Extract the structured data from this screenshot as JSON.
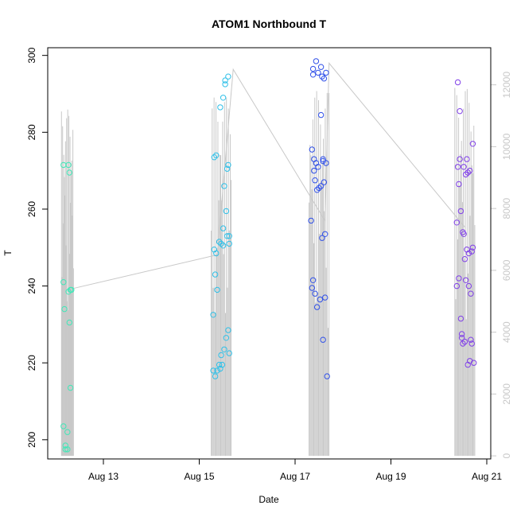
{
  "chart_data": {
    "type": "scatter",
    "title": "ATOM1 Northbound T",
    "xlabel": "Date",
    "ylabel": "T",
    "x_ticks": [
      "Aug 13",
      "Aug 15",
      "Aug 17",
      "Aug 19",
      "Aug 21"
    ],
    "ylim": [
      195,
      302
    ],
    "y_ticks": [
      200,
      220,
      240,
      260,
      280,
      300
    ],
    "y2lim": [
      -100,
      13200
    ],
    "y2_ticks": [
      0,
      2000,
      4000,
      6000,
      8000,
      10000,
      12000
    ],
    "grid": false,
    "colors": {
      "aug12": "#40e8b8",
      "aug15": "#30c0e8",
      "aug17": "#3050e8",
      "aug20": "#8040e8",
      "secondary": "#c8c8c8"
    },
    "series": [
      {
        "color": "#40e8b8",
        "points": [
          [
            "2012-08-12T04:00",
            271.5
          ],
          [
            "2012-08-12T04:00",
            241
          ],
          [
            "2012-08-12T04:00",
            203.5
          ],
          [
            "2012-08-12T04:30",
            234
          ],
          [
            "2012-08-12T05:00",
            198.5
          ],
          [
            "2012-08-12T05:00",
            197.5
          ],
          [
            "2012-08-12T06:00",
            202
          ],
          [
            "2012-08-12T06:00",
            197.5
          ],
          [
            "2012-08-12T06:30",
            271.5
          ],
          [
            "2012-08-12T06:30",
            238.5
          ],
          [
            "2012-08-12T07:00",
            230.5
          ],
          [
            "2012-08-12T07:00",
            269.5
          ],
          [
            "2012-08-12T07:30",
            239
          ],
          [
            "2012-08-12T07:30",
            213.5
          ],
          [
            "2012-08-12T08:00",
            239
          ]
        ]
      },
      {
        "color": "#30c0e8",
        "points": [
          [
            "2012-08-15T07:00",
            232.5
          ],
          [
            "2012-08-15T07:00",
            218
          ],
          [
            "2012-08-15T07:30",
            249.5
          ],
          [
            "2012-08-15T07:30",
            273.5
          ],
          [
            "2012-08-15T08:00",
            243
          ],
          [
            "2012-08-15T08:00",
            216.5
          ],
          [
            "2012-08-15T08:30",
            274
          ],
          [
            "2012-08-15T08:30",
            248.5
          ],
          [
            "2012-08-15T09:00",
            239
          ],
          [
            "2012-08-15T09:00",
            218
          ],
          [
            "2012-08-15T10:00",
            219.5
          ],
          [
            "2012-08-15T10:00",
            251.5
          ],
          [
            "2012-08-15T10:30",
            286.5
          ],
          [
            "2012-08-15T10:30",
            218.5
          ],
          [
            "2012-08-15T11:00",
            251
          ],
          [
            "2012-08-15T11:00",
            222
          ],
          [
            "2012-08-15T11:30",
            219.5
          ],
          [
            "2012-08-15T12:00",
            250.5
          ],
          [
            "2012-08-15T12:00",
            289
          ],
          [
            "2012-08-15T12:00",
            255
          ],
          [
            "2012-08-15T12:30",
            223.5
          ],
          [
            "2012-08-15T12:30",
            266
          ],
          [
            "2012-08-15T13:00",
            293.5
          ],
          [
            "2012-08-15T13:00",
            292.5
          ],
          [
            "2012-08-15T13:30",
            259.5
          ],
          [
            "2012-08-15T13:30",
            226.5
          ],
          [
            "2012-08-15T14:00",
            253
          ],
          [
            "2012-08-15T14:00",
            270.5
          ],
          [
            "2012-08-15T14:30",
            294.5
          ],
          [
            "2012-08-15T14:30",
            271.5
          ],
          [
            "2012-08-15T14:30",
            228.5
          ],
          [
            "2012-08-15T15:00",
            253
          ],
          [
            "2012-08-15T15:00",
            251
          ],
          [
            "2012-08-15T15:00",
            222.5
          ]
        ]
      },
      {
        "color": "#3050e8",
        "points": [
          [
            "2012-08-17T08:00",
            257
          ],
          [
            "2012-08-17T08:30",
            239.5
          ],
          [
            "2012-08-17T08:30",
            275.5
          ],
          [
            "2012-08-17T09:00",
            296.5
          ],
          [
            "2012-08-17T09:00",
            295
          ],
          [
            "2012-08-17T09:00",
            241.5
          ],
          [
            "2012-08-17T09:30",
            270
          ],
          [
            "2012-08-17T09:30",
            273
          ],
          [
            "2012-08-17T10:00",
            267.5
          ],
          [
            "2012-08-17T10:00",
            238
          ],
          [
            "2012-08-17T10:30",
            298.5
          ],
          [
            "2012-08-17T10:30",
            272
          ],
          [
            "2012-08-17T11:00",
            265
          ],
          [
            "2012-08-17T11:00",
            234.5
          ],
          [
            "2012-08-17T11:30",
            295.5
          ],
          [
            "2012-08-17T11:30",
            271
          ],
          [
            "2012-08-17T12:00",
            265.5
          ],
          [
            "2012-08-17T12:30",
            236.5
          ],
          [
            "2012-08-17T13:00",
            297
          ],
          [
            "2012-08-17T13:00",
            284.5
          ],
          [
            "2012-08-17T13:00",
            266
          ],
          [
            "2012-08-17T13:30",
            294.5
          ],
          [
            "2012-08-17T13:30",
            252.5
          ],
          [
            "2012-08-17T14:00",
            273
          ],
          [
            "2012-08-17T14:00",
            272.5
          ],
          [
            "2012-08-17T14:00",
            226
          ],
          [
            "2012-08-17T14:30",
            294
          ],
          [
            "2012-08-17T14:30",
            267
          ],
          [
            "2012-08-17T15:00",
            237
          ],
          [
            "2012-08-17T15:00",
            253.5
          ],
          [
            "2012-08-17T15:30",
            295.5
          ],
          [
            "2012-08-17T15:30",
            272
          ],
          [
            "2012-08-17T16:00",
            216.5
          ]
        ]
      },
      {
        "color": "#8040e8",
        "points": [
          [
            "2012-08-20T09:00",
            256.5
          ],
          [
            "2012-08-20T09:00",
            240
          ],
          [
            "2012-08-20T09:30",
            293
          ],
          [
            "2012-08-20T09:30",
            271
          ],
          [
            "2012-08-20T10:00",
            266.5
          ],
          [
            "2012-08-20T10:00",
            242
          ],
          [
            "2012-08-20T10:30",
            285.5
          ],
          [
            "2012-08-20T10:30",
            273
          ],
          [
            "2012-08-20T11:00",
            259.5
          ],
          [
            "2012-08-20T11:00",
            231.5
          ],
          [
            "2012-08-20T11:30",
            227.5
          ],
          [
            "2012-08-20T11:30",
            226.5
          ],
          [
            "2012-08-20T12:00",
            225
          ],
          [
            "2012-08-20T12:00",
            254
          ],
          [
            "2012-08-20T12:30",
            271
          ],
          [
            "2012-08-20T12:30",
            253.5
          ],
          [
            "2012-08-20T13:00",
            247
          ],
          [
            "2012-08-20T13:00",
            225.5
          ],
          [
            "2012-08-20T13:30",
            241.5
          ],
          [
            "2012-08-20T13:30",
            269
          ],
          [
            "2012-08-20T14:00",
            273
          ],
          [
            "2012-08-20T14:00",
            249.5
          ],
          [
            "2012-08-20T14:30",
            219.5
          ],
          [
            "2012-08-20T14:30",
            269.5
          ],
          [
            "2012-08-20T15:00",
            248.5
          ],
          [
            "2012-08-20T15:00",
            240
          ],
          [
            "2012-08-20T15:30",
            270
          ],
          [
            "2012-08-20T15:30",
            220.5
          ],
          [
            "2012-08-20T16:00",
            238
          ],
          [
            "2012-08-20T16:00",
            226
          ],
          [
            "2012-08-20T16:30",
            225
          ],
          [
            "2012-08-20T16:30",
            249
          ],
          [
            "2012-08-20T17:00",
            277
          ],
          [
            "2012-08-20T17:00",
            250
          ],
          [
            "2012-08-20T17:30",
            220
          ]
        ]
      }
    ],
    "secondary_series": {
      "color": "#c8c8c8",
      "bursts": [
        {
          "start": "2012-08-12T03:00",
          "end": "2012-08-12T09:00",
          "min": 0,
          "max": 11200
        },
        {
          "start": "2012-08-15T06:00",
          "end": "2012-08-15T16:00",
          "min": 0,
          "max": 11600
        },
        {
          "start": "2012-08-17T07:00",
          "end": "2012-08-17T17:00",
          "min": 0,
          "max": 11800
        },
        {
          "start": "2012-08-20T08:00",
          "end": "2012-08-20T18:00",
          "min": 0,
          "max": 11900
        }
      ],
      "trend": [
        [
          "2012-08-12T08:00",
          5400
        ],
        [
          "2012-08-15T09:00",
          6500
        ],
        [
          "2012-08-15T17:00",
          12500
        ],
        [
          "2012-08-17T15:00",
          7600
        ],
        [
          "2012-08-17T17:00",
          12700
        ],
        [
          "2012-08-20T13:00",
          7400
        ]
      ]
    }
  }
}
